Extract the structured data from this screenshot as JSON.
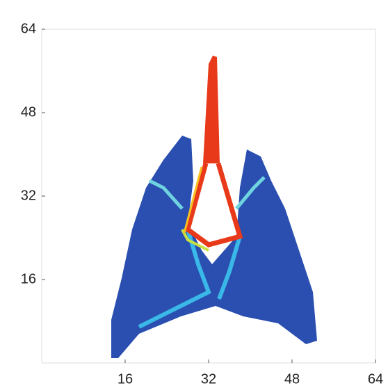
{
  "chart_data": {
    "type": "image",
    "xlim": [
      0,
      64
    ],
    "ylim": [
      0,
      64
    ],
    "xticks": [
      16,
      32,
      48,
      64
    ],
    "yticks": [
      16,
      32,
      48,
      64
    ]
  }
}
